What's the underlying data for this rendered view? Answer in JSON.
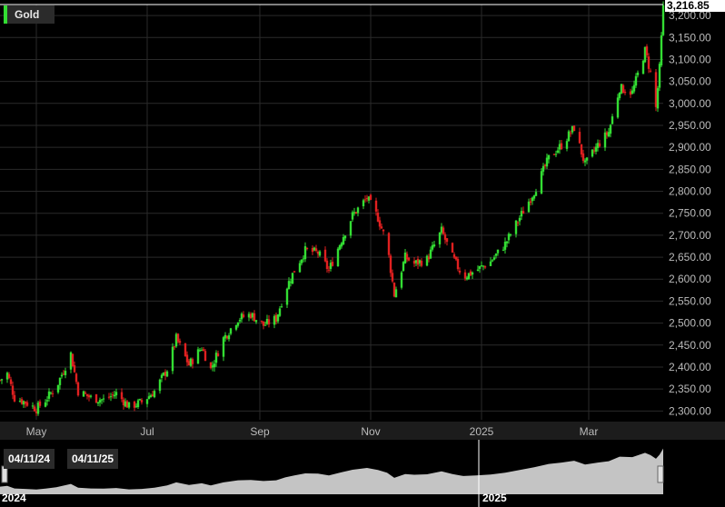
{
  "legend": {
    "label": "Gold",
    "color": "#33dd33"
  },
  "last_price": "3,216.85",
  "range": {
    "start_label": "04/11/24",
    "end_label": "04/11/25"
  },
  "navigator": {
    "year_labels": [
      "2024",
      "2025"
    ]
  },
  "colors": {
    "up": "#33dd33",
    "down": "#e02020",
    "grid": "#2a2a2a",
    "axis_text": "#bbbbbb",
    "nav_fill": "#cfcfcf"
  },
  "chart_data": {
    "type": "candlestick",
    "title": "Gold",
    "yaxis_ticks": [
      "2,300.00",
      "2,350.00",
      "2,400.00",
      "2,450.00",
      "2,500.00",
      "2,550.00",
      "2,600.00",
      "2,650.00",
      "2,700.00",
      "2,750.00",
      "2,800.00",
      "2,850.00",
      "2,900.00",
      "2,950.00",
      "3,000.00",
      "3,050.00",
      "3,100.00",
      "3,150.00",
      "3,200.00"
    ],
    "xaxis_ticks": [
      "May",
      "Jul",
      "Sep",
      "Nov",
      "2025",
      "Mar"
    ],
    "ylim": [
      2280,
      3225
    ],
    "grid": true,
    "last_value": 3216.85,
    "close_series": [
      {
        "date": "2024-04-11",
        "value": 2370
      },
      {
        "date": "2024-04-15",
        "value": 2385
      },
      {
        "date": "2024-04-19",
        "value": 2330
      },
      {
        "date": "2024-04-25",
        "value": 2320
      },
      {
        "date": "2024-05-01",
        "value": 2305
      },
      {
        "date": "2024-05-06",
        "value": 2325
      },
      {
        "date": "2024-05-12",
        "value": 2355
      },
      {
        "date": "2024-05-20",
        "value": 2430
      },
      {
        "date": "2024-05-24",
        "value": 2345
      },
      {
        "date": "2024-05-31",
        "value": 2330
      },
      {
        "date": "2024-06-07",
        "value": 2325
      },
      {
        "date": "2024-06-14",
        "value": 2340
      },
      {
        "date": "2024-06-21",
        "value": 2310
      },
      {
        "date": "2024-06-28",
        "value": 2320
      },
      {
        "date": "2024-07-05",
        "value": 2345
      },
      {
        "date": "2024-07-12",
        "value": 2395
      },
      {
        "date": "2024-07-17",
        "value": 2465
      },
      {
        "date": "2024-07-24",
        "value": 2405
      },
      {
        "date": "2024-07-31",
        "value": 2445
      },
      {
        "date": "2024-08-05",
        "value": 2395
      },
      {
        "date": "2024-08-12",
        "value": 2465
      },
      {
        "date": "2024-08-20",
        "value": 2510
      },
      {
        "date": "2024-08-27",
        "value": 2520
      },
      {
        "date": "2024-09-03",
        "value": 2495
      },
      {
        "date": "2024-09-10",
        "value": 2510
      },
      {
        "date": "2024-09-15",
        "value": 2575
      },
      {
        "date": "2024-09-20",
        "value": 2620
      },
      {
        "date": "2024-09-26",
        "value": 2665
      },
      {
        "date": "2024-10-03",
        "value": 2660
      },
      {
        "date": "2024-10-09",
        "value": 2620
      },
      {
        "date": "2024-10-16",
        "value": 2690
      },
      {
        "date": "2024-10-22",
        "value": 2745
      },
      {
        "date": "2024-10-30",
        "value": 2785
      },
      {
        "date": "2024-11-05",
        "value": 2740
      },
      {
        "date": "2024-11-10",
        "value": 2680
      },
      {
        "date": "2024-11-14",
        "value": 2565
      },
      {
        "date": "2024-11-20",
        "value": 2650
      },
      {
        "date": "2024-11-25",
        "value": 2635
      },
      {
        "date": "2024-12-02",
        "value": 2645
      },
      {
        "date": "2024-12-10",
        "value": 2710
      },
      {
        "date": "2024-12-16",
        "value": 2650
      },
      {
        "date": "2024-12-22",
        "value": 2605
      },
      {
        "date": "2024-12-29",
        "value": 2620
      },
      {
        "date": "2025-01-06",
        "value": 2640
      },
      {
        "date": "2025-01-14",
        "value": 2680
      },
      {
        "date": "2025-01-22",
        "value": 2740
      },
      {
        "date": "2025-01-30",
        "value": 2800
      },
      {
        "date": "2025-02-07",
        "value": 2875
      },
      {
        "date": "2025-02-14",
        "value": 2905
      },
      {
        "date": "2025-02-21",
        "value": 2945
      },
      {
        "date": "2025-02-27",
        "value": 2860
      },
      {
        "date": "2025-03-06",
        "value": 2905
      },
      {
        "date": "2025-03-12",
        "value": 2935
      },
      {
        "date": "2025-03-18",
        "value": 3035
      },
      {
        "date": "2025-03-25",
        "value": 3025
      },
      {
        "date": "2025-04-01",
        "value": 3120
      },
      {
        "date": "2025-04-04",
        "value": 3070
      },
      {
        "date": "2025-04-07",
        "value": 2990
      },
      {
        "date": "2025-04-09",
        "value": 3080
      },
      {
        "date": "2025-04-11",
        "value": 3216.85
      }
    ]
  }
}
